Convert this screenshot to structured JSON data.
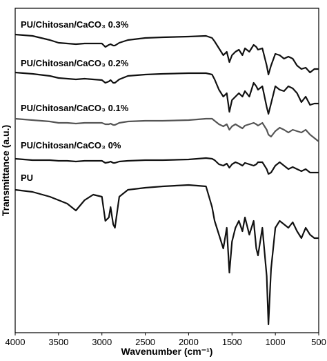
{
  "chart_data": {
    "type": "line",
    "xlabel": "Wavenumber (cm⁻¹)",
    "ylabel": "Transmittance (a.u.)",
    "xlim": [
      4000,
      500
    ],
    "xticks": [
      4000,
      3500,
      3000,
      2500,
      2000,
      1500,
      1000,
      500
    ],
    "ylim": [
      0,
      470
    ],
    "yticks": [],
    "x": [
      4000,
      3800,
      3600,
      3500,
      3400,
      3300,
      3200,
      3100,
      3000,
      2960,
      2920,
      2900,
      2870,
      2850,
      2800,
      2700,
      2500,
      2300,
      2000,
      1800,
      1730,
      1700,
      1650,
      1600,
      1560,
      1530,
      1500,
      1460,
      1420,
      1380,
      1350,
      1300,
      1250,
      1220,
      1200,
      1150,
      1100,
      1080,
      1050,
      1000,
      950,
      900,
      850,
      800,
      750,
      700,
      650,
      600,
      550,
      500
    ],
    "series": [
      {
        "name": "PU/Chitosan/CaCO₃ 0.3%",
        "color": "#111111",
        "values": [
          432,
          430,
          424,
          420,
          419,
          418,
          419,
          419,
          419,
          414,
          417,
          418,
          416,
          416,
          420,
          424,
          427,
          428,
          429,
          430,
          427,
          422,
          412,
          402,
          407,
          392,
          402,
          407,
          410,
          402,
          412,
          407,
          417,
          414,
          410,
          412,
          387,
          374,
          387,
          404,
          402,
          397,
          400,
          397,
          387,
          382,
          384,
          377,
          382,
          382
        ]
      },
      {
        "name": "PU/Chitosan/CaCO₃ 0.2%",
        "color": "#111111",
        "values": [
          377,
          375,
          372,
          369,
          368,
          367,
          368,
          367,
          366,
          362,
          364,
          366,
          362,
          362,
          367,
          372,
          374,
          375,
          376,
          376,
          374,
          367,
          352,
          342,
          347,
          320,
          337,
          342,
          347,
          342,
          350,
          342,
          362,
          357,
          352,
          357,
          327,
          317,
          332,
          357,
          352,
          350,
          357,
          354,
          347,
          334,
          342,
          330,
          332,
          332
        ]
      },
      {
        "name": "PU/Chitosan/CaCO₃ 0.1%",
        "color": "#555555",
        "values": [
          310,
          308,
          306,
          304,
          304,
          303,
          304,
          304,
          304,
          302,
          302,
          303,
          301,
          301,
          304,
          306,
          307,
          307,
          308,
          310,
          310,
          307,
          302,
          299,
          302,
          294,
          299,
          302,
          299,
          296,
          300,
          302,
          304,
          302,
          300,
          304,
          294,
          287,
          284,
          292,
          297,
          294,
          290,
          294,
          292,
          290,
          294,
          287,
          282,
          277
        ]
      },
      {
        "name": "PU/Chitosan/CaCO₃ 0%",
        "color": "#111111",
        "values": [
          252,
          250,
          250,
          249,
          249,
          248,
          249,
          249,
          249,
          246,
          247,
          248,
          246,
          246,
          248,
          249,
          250,
          250,
          251,
          253,
          252,
          250,
          244,
          242,
          245,
          239,
          244,
          247,
          245,
          242,
          246,
          244,
          242,
          244,
          247,
          247,
          237,
          230,
          232,
          242,
          247,
          242,
          237,
          240,
          237,
          234,
          237,
          232,
          232,
          232
        ]
      },
      {
        "name": "PU",
        "color": "#111111",
        "values": [
          207,
          204,
          197,
          192,
          187,
          177,
          192,
          200,
          197,
          162,
          167,
          182,
          157,
          152,
          197,
          207,
          210,
          212,
          214,
          212,
          182,
          162,
          142,
          122,
          152,
          87,
          132,
          152,
          162,
          147,
          167,
          142,
          162,
          122,
          112,
          152,
          82,
          12,
          92,
          152,
          162,
          157,
          152,
          160,
          147,
          137,
          152,
          142,
          137,
          137
        ]
      }
    ]
  }
}
